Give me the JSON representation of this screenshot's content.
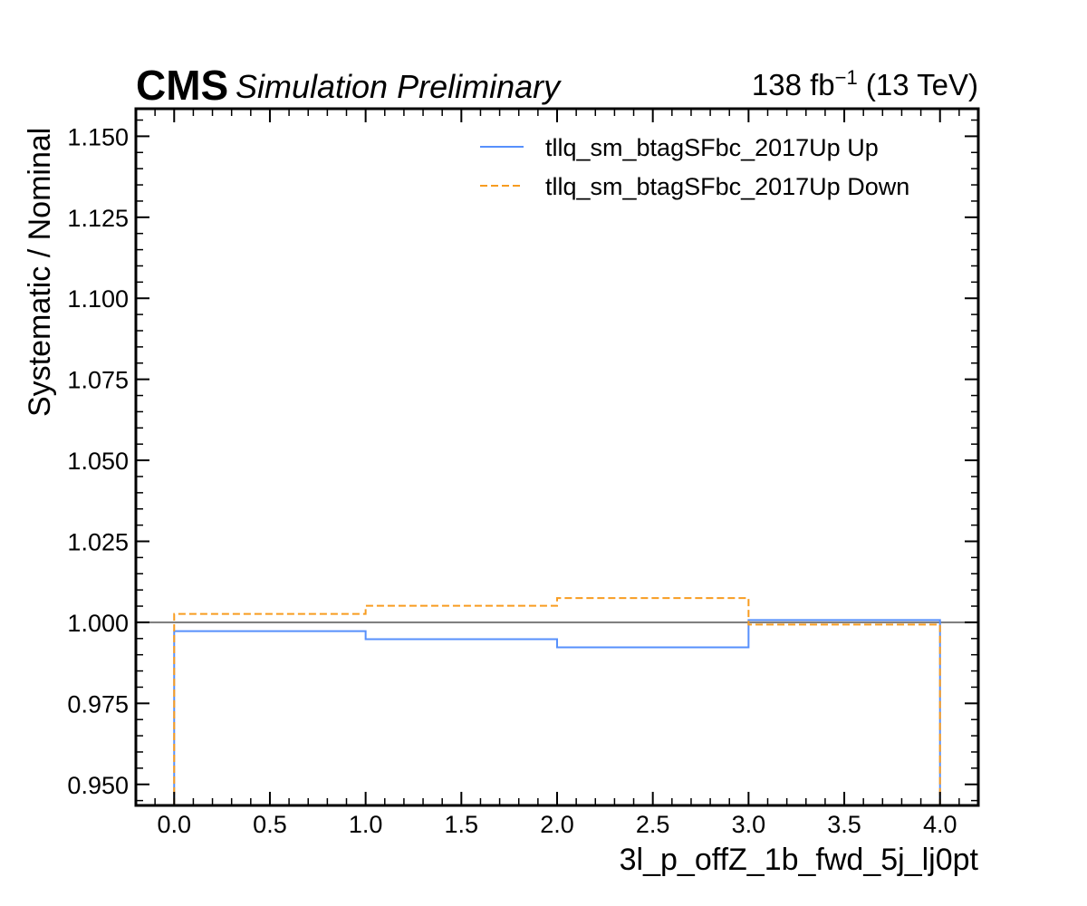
{
  "header": {
    "experiment": "CMS",
    "status": "Simulation Preliminary",
    "lumi_value": "138 fb",
    "lumi_exponent": "−1",
    "energy": " (13 TeV)"
  },
  "chart_data": {
    "type": "line",
    "style": "step",
    "xlabel": "3l_p_offZ_1b_fwd_5j_lj0pt",
    "ylabel": "Systematic / Nominal",
    "xlim": [
      -0.2,
      4.2
    ],
    "ylim": [
      0.9435,
      1.1585
    ],
    "xticks": [
      0.0,
      0.5,
      1.0,
      1.5,
      2.0,
      2.5,
      3.0,
      3.5,
      4.0
    ],
    "xtick_labels": [
      "0.0",
      "0.5",
      "1.0",
      "1.5",
      "2.0",
      "2.5",
      "3.0",
      "3.5",
      "4.0"
    ],
    "yticks": [
      0.95,
      0.975,
      1.0,
      1.025,
      1.05,
      1.075,
      1.1,
      1.125,
      1.15
    ],
    "ytick_labels": [
      "0.950",
      "0.975",
      "1.000",
      "1.025",
      "1.050",
      "1.075",
      "1.100",
      "1.125",
      "1.150"
    ],
    "reference_line": 1.0,
    "reference_color": "#808080",
    "legend_position": "top-right",
    "bin_edges": [
      0,
      1,
      2,
      3,
      4
    ],
    "series": [
      {
        "name": "tllq_sm_btagSFbc_2017Up Up",
        "values": [
          0.9973,
          0.9948,
          0.9923,
          1.0007
        ],
        "color": "#5790fc",
        "dash": "solid"
      },
      {
        "name": "tllq_sm_btagSFbc_2017Up Down",
        "values": [
          1.0026,
          1.0051,
          1.0075,
          0.9993
        ],
        "color": "#f89c20",
        "dash": "dashed"
      }
    ]
  }
}
